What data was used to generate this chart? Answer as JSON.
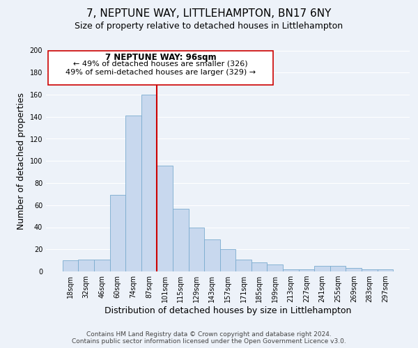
{
  "title": "7, NEPTUNE WAY, LITTLEHAMPTON, BN17 6NY",
  "subtitle": "Size of property relative to detached houses in Littlehampton",
  "xlabel": "Distribution of detached houses by size in Littlehampton",
  "ylabel": "Number of detached properties",
  "footer_line1": "Contains HM Land Registry data © Crown copyright and database right 2024.",
  "footer_line2": "Contains public sector information licensed under the Open Government Licence v3.0.",
  "bin_labels": [
    "18sqm",
    "32sqm",
    "46sqm",
    "60sqm",
    "74sqm",
    "87sqm",
    "101sqm",
    "115sqm",
    "129sqm",
    "143sqm",
    "157sqm",
    "171sqm",
    "185sqm",
    "199sqm",
    "213sqm",
    "227sqm",
    "241sqm",
    "255sqm",
    "269sqm",
    "283sqm",
    "297sqm"
  ],
  "bar_heights": [
    10,
    11,
    11,
    69,
    141,
    160,
    96,
    57,
    40,
    29,
    20,
    11,
    8,
    6,
    2,
    2,
    5,
    5,
    3,
    2,
    2
  ],
  "bar_color": "#c8d8ee",
  "bar_edge_color": "#7aabcf",
  "vline_color": "#cc0000",
  "annotation_title": "7 NEPTUNE WAY: 96sqm",
  "annotation_line1": "← 49% of detached houses are smaller (326)",
  "annotation_line2": "49% of semi-detached houses are larger (329) →",
  "annotation_box_color": "#ffffff",
  "annotation_box_edge_color": "#cc0000",
  "ylim": [
    0,
    200
  ],
  "yticks": [
    0,
    20,
    40,
    60,
    80,
    100,
    120,
    140,
    160,
    180,
    200
  ],
  "background_color": "#edf2f9",
  "grid_color": "#ffffff",
  "title_fontsize": 11,
  "subtitle_fontsize": 9,
  "axis_label_fontsize": 9,
  "tick_fontsize": 7,
  "annotation_title_fontsize": 8.5,
  "annotation_text_fontsize": 8,
  "footer_fontsize": 6.5
}
